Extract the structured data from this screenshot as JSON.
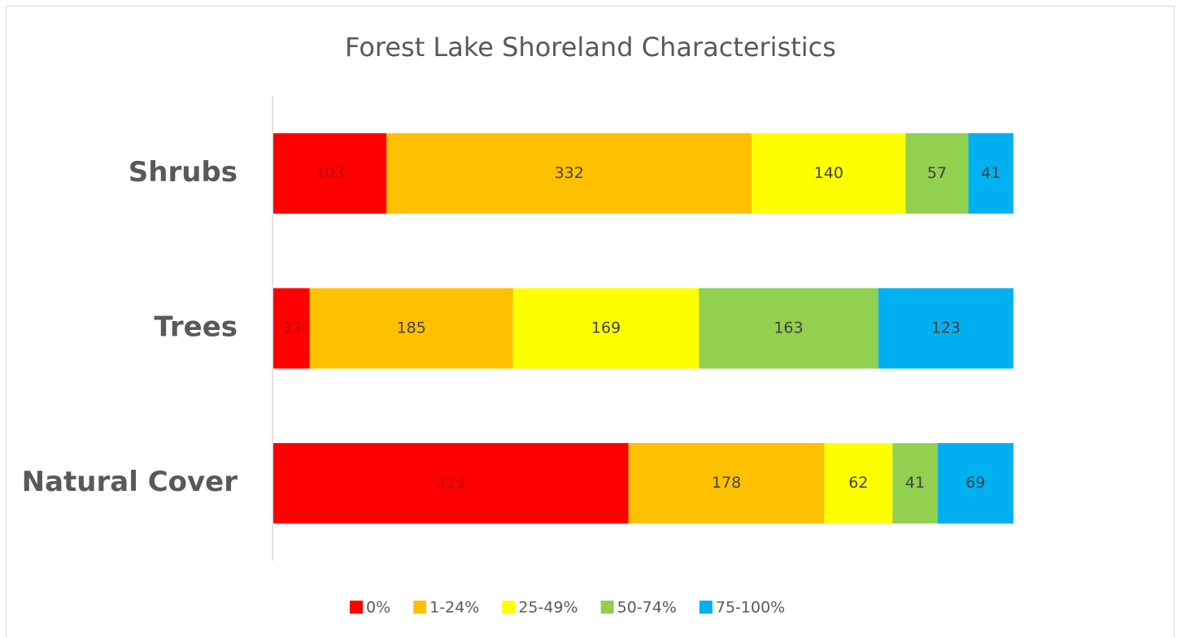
{
  "chart_data": {
    "type": "bar",
    "orientation": "horizontal",
    "stacked": true,
    "title": "Forest Lake Shoreland Characteristics",
    "categories": [
      "Shrubs",
      "Trees",
      "Natural Cover"
    ],
    "series": [
      {
        "name": "0%",
        "color": "#ff0000",
        "values": [
          103,
          33,
          323
        ]
      },
      {
        "name": "1-24%",
        "color": "#ffc000",
        "values": [
          332,
          185,
          178
        ]
      },
      {
        "name": "25-49%",
        "color": "#ffff00",
        "values": [
          140,
          169,
          62
        ]
      },
      {
        "name": "50-74%",
        "color": "#92d050",
        "values": [
          57,
          163,
          41
        ]
      },
      {
        "name": "75-100%",
        "color": "#00b0f0",
        "values": [
          41,
          123,
          69
        ]
      }
    ],
    "legend": "bottom"
  }
}
